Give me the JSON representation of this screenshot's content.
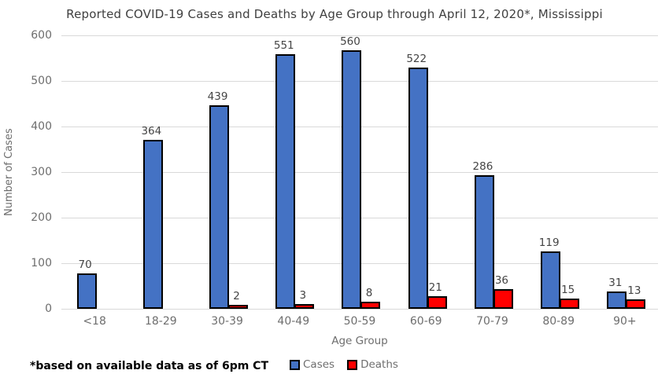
{
  "chart_data": {
    "type": "bar",
    "title": "Reported COVID-19 Cases and Deaths by Age Group through April 12, 2020*, Mississippi",
    "xlabel": "Age Group",
    "ylabel": "Number of Cases",
    "footnote": "*based on available data as of 6pm CT",
    "ylim": [
      0,
      600
    ],
    "yticks": [
      0,
      100,
      200,
      300,
      400,
      500,
      600
    ],
    "grid": "horizontal",
    "legend_position": "bottom-center",
    "categories": [
      "<18",
      "18-29",
      "30-39",
      "40-49",
      "50-59",
      "60-69",
      "70-79",
      "80-89",
      "90+"
    ],
    "series": [
      {
        "name": "Cases",
        "color": "#4472C4",
        "values": [
          70,
          364,
          439,
          551,
          560,
          522,
          286,
          119,
          31
        ]
      },
      {
        "name": "Deaths",
        "color": "#FF0000",
        "values": [
          null,
          null,
          2,
          3,
          8,
          21,
          36,
          15,
          13
        ]
      }
    ],
    "colors": {
      "bar_border": "#000000",
      "gridline": "#D9D9D9",
      "axis_text": "#6E6E6E",
      "title_text": "#3F3F3F",
      "data_label_text": "#444444",
      "footnote_text": "#000000"
    }
  }
}
